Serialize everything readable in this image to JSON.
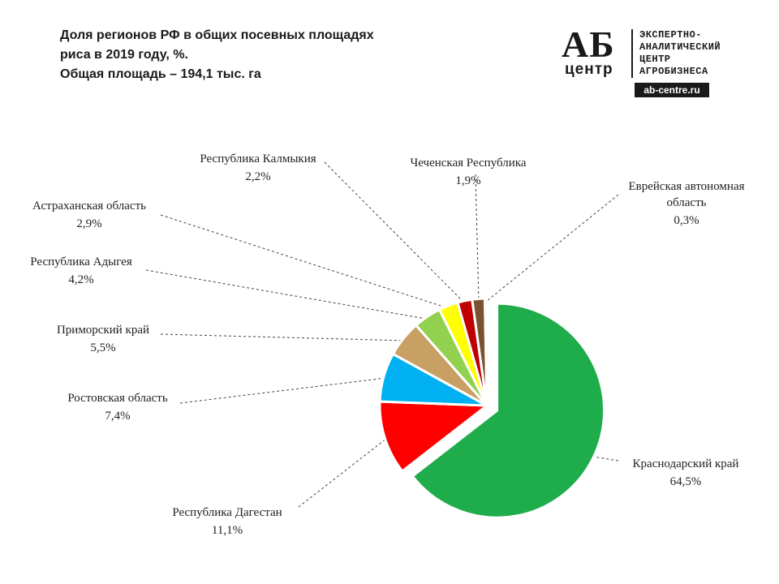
{
  "title": {
    "line1": "Доля регионов РФ в общих посевных площадях",
    "line2": "риса в 2019 году, %.",
    "line3": "Общая площадь – 194,1 тыс. га"
  },
  "logo": {
    "ab": "АБ",
    "center": "центр",
    "lines": [
      "ЭКСПЕРТНО-",
      "АНАЛИТИЧЕСКИЙ",
      "ЦЕНТР",
      "АГРОБИЗНЕСА"
    ],
    "url": "ab-centre.ru"
  },
  "chart_data": {
    "type": "pie",
    "unit": "%",
    "categories": [
      "Краснодарский край",
      "Республика Дагестан",
      "Ростовская область",
      "Приморский край",
      "Республика Адыгея",
      "Астраханская область",
      "Республика Калмыкия",
      "Чеченская Республика",
      "Еврейская автономная область"
    ],
    "values": [
      64.5,
      11.1,
      7.4,
      5.5,
      4.2,
      2.9,
      2.2,
      1.9,
      0.3
    ],
    "labels": [
      "64,5%",
      "11,1%",
      "7,4%",
      "5,5%",
      "4,2%",
      "2,9%",
      "2,2%",
      "1,9%",
      "0,3%"
    ],
    "colors": [
      "#1fac4a",
      "#ff0000",
      "#00b0f0",
      "#c8a064",
      "#92d050",
      "#ffff00",
      "#c00000",
      "#7a5230",
      "#2a2a2a"
    ],
    "exploded": "Краснодарский край"
  }
}
